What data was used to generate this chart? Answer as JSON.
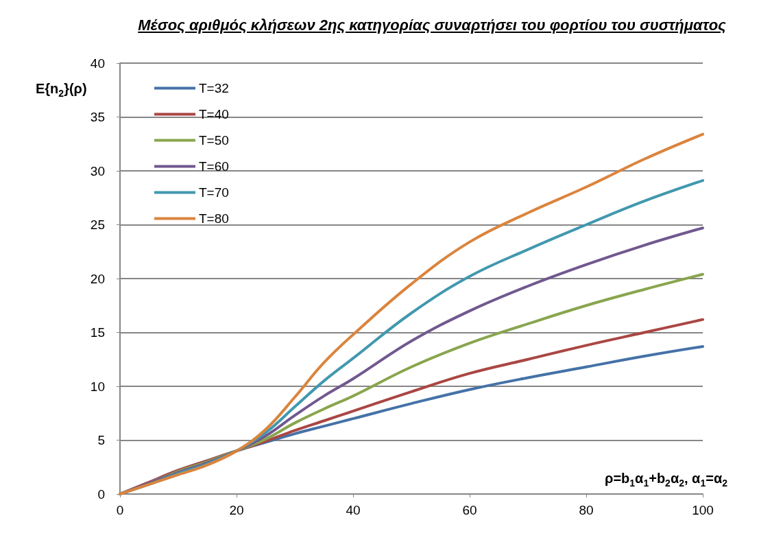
{
  "chart_data": {
    "type": "line",
    "title": "Μέσος αριθμός κλήσεων 2ης κατηγορίας συναρτήσει του φορτίου του συστήματος",
    "xlabel": "ρ=b$_{1}$α$_{1}$+b$_{2}$α$_{2}$, α$_{1}$=α$_{2}$",
    "ylabel": "E{n$_{2}$}(ρ)",
    "x": [
      0,
      5,
      10,
      15,
      20,
      25,
      30,
      35,
      40,
      50,
      60,
      70,
      80,
      90,
      100
    ],
    "series": [
      {
        "name": "T=32",
        "color": "#4572a7",
        "values": [
          0,
          1.1,
          2.2,
          3.1,
          4.0,
          4.8,
          5.6,
          6.3,
          7.0,
          8.4,
          9.7,
          10.8,
          11.8,
          12.8,
          13.7
        ]
      },
      {
        "name": "T=40",
        "color": "#aa4643",
        "values": [
          0,
          1.1,
          2.2,
          3.1,
          4.0,
          4.9,
          5.9,
          6.8,
          7.7,
          9.5,
          11.2,
          12.5,
          13.8,
          15.0,
          16.2
        ]
      },
      {
        "name": "T=50",
        "color": "#89a54e",
        "values": [
          0,
          1.0,
          2.1,
          3.0,
          4.0,
          5.1,
          6.6,
          7.9,
          9.1,
          11.8,
          14.0,
          15.8,
          17.5,
          19.0,
          20.4
        ]
      },
      {
        "name": "T=60",
        "color": "#71588f",
        "values": [
          0,
          1.0,
          2.0,
          2.9,
          4.0,
          5.4,
          7.3,
          9.1,
          10.7,
          14.2,
          17.0,
          19.3,
          21.3,
          23.1,
          24.7
        ]
      },
      {
        "name": "T=70",
        "color": "#4198af",
        "values": [
          0,
          0.9,
          1.9,
          2.8,
          4.0,
          5.7,
          8.1,
          10.5,
          12.6,
          16.8,
          20.2,
          22.7,
          25.0,
          27.2,
          29.1
        ]
      },
      {
        "name": "T=80",
        "color": "#db843d",
        "values": [
          0,
          0.9,
          1.8,
          2.7,
          4.0,
          6.0,
          9.0,
          12.2,
          14.8,
          19.5,
          23.4,
          26.1,
          28.5,
          31.1,
          33.4
        ]
      }
    ],
    "xlim": [
      0,
      100
    ],
    "xticks": [
      0,
      20,
      40,
      60,
      80,
      100
    ],
    "ylim": [
      0,
      40
    ],
    "yticks": [
      0,
      5,
      10,
      15,
      20,
      25,
      30,
      35,
      40
    ],
    "grid": "y",
    "legend": "top left",
    "marker": "none",
    "line_style": "solid"
  }
}
